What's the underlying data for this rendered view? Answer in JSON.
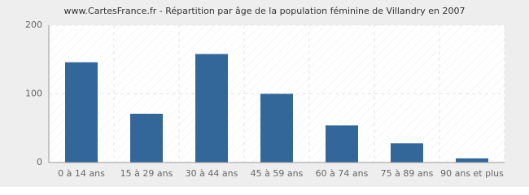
{
  "chart_data": {
    "type": "bar",
    "title": "www.CartesFrance.fr - Répartition par âge de la population féminine de Villandry en 2007",
    "categories": [
      "0 à 14 ans",
      "15 à 29 ans",
      "30 à 44 ans",
      "45 à 59 ans",
      "60 à 74 ans",
      "75 à 89 ans",
      "90 ans et plus"
    ],
    "values": [
      146,
      71,
      158,
      100,
      54,
      28,
      6
    ],
    "color": "#336699",
    "ylim": [
      0,
      200
    ],
    "yticks": [
      0,
      100,
      200
    ],
    "grid": true
  }
}
